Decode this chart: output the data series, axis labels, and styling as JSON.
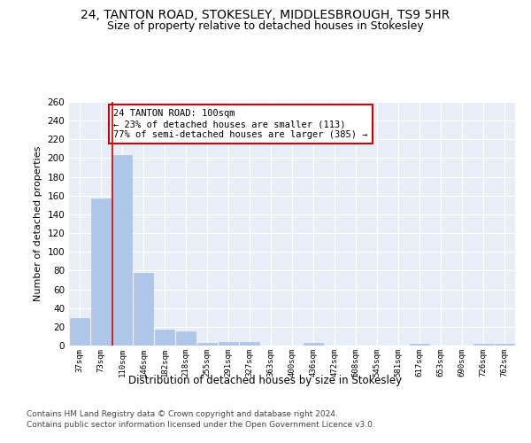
{
  "title1": "24, TANTON ROAD, STOKESLEY, MIDDLESBROUGH, TS9 5HR",
  "title2": "Size of property relative to detached houses in Stokesley",
  "xlabel": "Distribution of detached houses by size in Stokesley",
  "ylabel": "Number of detached properties",
  "footer1": "Contains HM Land Registry data © Crown copyright and database right 2024.",
  "footer2": "Contains public sector information licensed under the Open Government Licence v3.0.",
  "categories": [
    "37sqm",
    "73sqm",
    "110sqm",
    "146sqm",
    "182sqm",
    "218sqm",
    "255sqm",
    "291sqm",
    "327sqm",
    "363sqm",
    "400sqm",
    "436sqm",
    "472sqm",
    "508sqm",
    "545sqm",
    "581sqm",
    "617sqm",
    "653sqm",
    "690sqm",
    "726sqm",
    "762sqm"
  ],
  "values": [
    29,
    157,
    203,
    78,
    17,
    15,
    3,
    4,
    4,
    0,
    0,
    3,
    0,
    0,
    0,
    0,
    2,
    0,
    0,
    2,
    2
  ],
  "bar_color": "#aec6e8",
  "bar_edge_color": "#aec6e8",
  "highlight_line_color": "#cc0000",
  "annotation_text": "24 TANTON ROAD: 100sqm\n← 23% of detached houses are smaller (113)\n77% of semi-detached houses are larger (385) →",
  "annotation_box_edge": "#cc0000",
  "ylim": [
    0,
    260
  ],
  "yticks": [
    0,
    20,
    40,
    60,
    80,
    100,
    120,
    140,
    160,
    180,
    200,
    220,
    240,
    260
  ],
  "bg_color": "#ffffff",
  "plot_bg_color": "#e8eef7",
  "grid_color": "#ffffff",
  "title1_fontsize": 10,
  "title2_fontsize": 9,
  "xlabel_fontsize": 8.5,
  "ylabel_fontsize": 8,
  "annotation_fontsize": 7.5,
  "footer_fontsize": 6.5
}
